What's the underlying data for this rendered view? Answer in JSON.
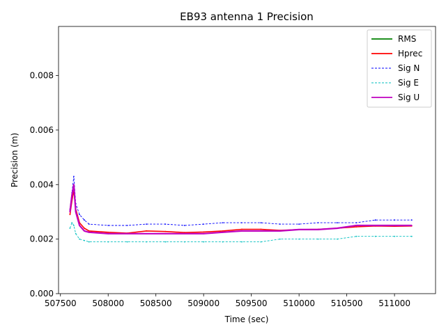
{
  "chart_data": {
    "type": "line",
    "title": "EB93 antenna 1 Precision",
    "xlabel": "Time (sec)",
    "ylabel": "Precision (m)",
    "xlim": [
      507480,
      511430
    ],
    "ylim": [
      0,
      0.0098
    ],
    "xticks": [
      507500,
      508000,
      508500,
      509000,
      509500,
      510000,
      510500,
      511000
    ],
    "xtick_labels": [
      "507500",
      "508000",
      "508500",
      "509000",
      "509500",
      "510000",
      "510500",
      "511000"
    ],
    "yticks": [
      0,
      0.002,
      0.004,
      0.006,
      0.008
    ],
    "ytick_labels": [
      "0.000",
      "0.002",
      "0.004",
      "0.006",
      "0.008"
    ],
    "legend_position": "upper right",
    "series": [
      {
        "name": "RMS",
        "color": "#008000",
        "style": "solid",
        "x": [],
        "values": []
      },
      {
        "name": "Hprec",
        "color": "#ff0000",
        "style": "solid",
        "x": [
          507600,
          507620,
          507640,
          507660,
          507700,
          507750,
          507800,
          508000,
          508200,
          508400,
          508600,
          508800,
          509000,
          509200,
          509400,
          509600,
          509800,
          510000,
          510200,
          510400,
          510600,
          510800,
          511000,
          511180
        ],
        "values": [
          0.0029,
          0.0034,
          0.0038,
          0.0031,
          0.0026,
          0.0024,
          0.0023,
          0.00225,
          0.00222,
          0.0023,
          0.00228,
          0.00224,
          0.00226,
          0.0023,
          0.00236,
          0.00236,
          0.00232,
          0.00235,
          0.00236,
          0.0024,
          0.00245,
          0.00248,
          0.00247,
          0.00248
        ]
      },
      {
        "name": "Sig N",
        "color": "#0000ff",
        "style": "dashed",
        "x": [
          507600,
          507620,
          507640,
          507660,
          507700,
          507750,
          507800,
          508000,
          508200,
          508400,
          508600,
          508800,
          509000,
          509200,
          509400,
          509600,
          509800,
          510000,
          510200,
          510400,
          510600,
          510800,
          511000,
          511180
        ],
        "values": [
          0.0031,
          0.0037,
          0.0043,
          0.0033,
          0.0029,
          0.0027,
          0.00255,
          0.0025,
          0.0025,
          0.00255,
          0.00255,
          0.0025,
          0.00255,
          0.0026,
          0.0026,
          0.0026,
          0.00255,
          0.00255,
          0.0026,
          0.0026,
          0.0026,
          0.0027,
          0.0027,
          0.0027
        ]
      },
      {
        "name": "Sig E",
        "color": "#00bfbf",
        "style": "dashed",
        "x": [
          507600,
          507620,
          507640,
          507660,
          507700,
          507750,
          507800,
          508000,
          508200,
          508400,
          508600,
          508800,
          509000,
          509200,
          509400,
          509600,
          509800,
          510000,
          510200,
          510400,
          510600,
          510800,
          511000,
          511180
        ],
        "values": [
          0.0024,
          0.0026,
          0.0025,
          0.0022,
          0.002,
          0.00195,
          0.0019,
          0.0019,
          0.0019,
          0.0019,
          0.0019,
          0.0019,
          0.0019,
          0.0019,
          0.0019,
          0.0019,
          0.002,
          0.002,
          0.002,
          0.002,
          0.0021,
          0.0021,
          0.0021,
          0.0021
        ]
      },
      {
        "name": "Sig U",
        "color": "#bf00bf",
        "style": "solid",
        "x": [
          507600,
          507620,
          507640,
          507660,
          507700,
          507750,
          507800,
          508000,
          508200,
          508400,
          508600,
          508800,
          509000,
          509200,
          509400,
          509600,
          509800,
          510000,
          510200,
          510400,
          510600,
          510800,
          511000,
          511180
        ],
        "values": [
          0.003,
          0.0036,
          0.004,
          0.003,
          0.0025,
          0.0023,
          0.00225,
          0.0022,
          0.0022,
          0.0022,
          0.0022,
          0.0022,
          0.0022,
          0.00225,
          0.0023,
          0.0023,
          0.0023,
          0.00235,
          0.00235,
          0.0024,
          0.0025,
          0.0025,
          0.0025,
          0.0025
        ]
      }
    ]
  }
}
